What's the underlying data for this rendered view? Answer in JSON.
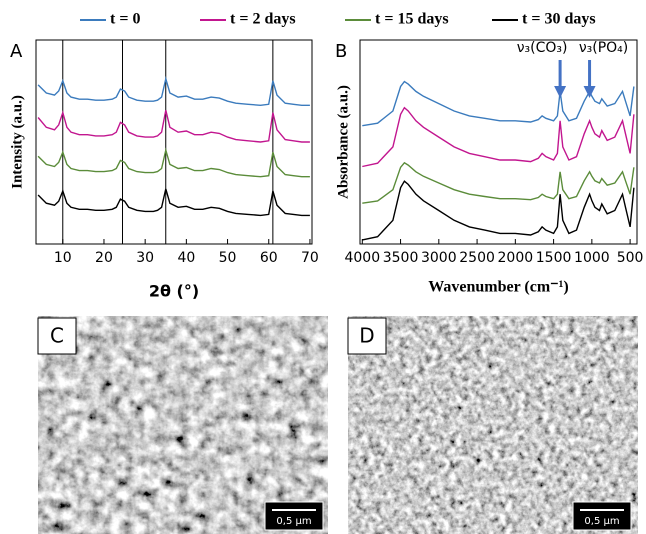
{
  "chart_data": [
    {
      "type": "line",
      "panel": "A",
      "xlabel": "2θ (°)",
      "ylabel": "Intensity (a.u.)",
      "x": [
        4,
        6,
        8,
        9,
        10,
        11,
        12,
        14,
        16,
        18,
        20,
        22,
        23,
        24,
        25,
        26,
        28,
        30,
        32,
        33,
        34,
        35,
        36,
        38,
        40,
        42,
        44,
        46,
        48,
        50,
        52,
        55,
        58,
        60,
        61,
        62,
        64,
        66,
        68,
        70
      ],
      "xlim": [
        3.5,
        70.5
      ],
      "xticks": [
        10,
        20,
        30,
        40,
        50,
        60,
        70
      ],
      "ylim": [
        0,
        100
      ],
      "ref_lines": [
        10,
        24.5,
        35,
        61
      ],
      "series": [
        {
          "name": "t = 0",
          "color": "#3b7bbd",
          "values": [
            78,
            74,
            73,
            75,
            80,
            74,
            72,
            71,
            71,
            70.5,
            70.5,
            71,
            72,
            76,
            75,
            72,
            70.5,
            70,
            70,
            70.5,
            72,
            81,
            74,
            72,
            72.5,
            71,
            71,
            72,
            71.5,
            70,
            69,
            68.5,
            68,
            68.5,
            80,
            73,
            69,
            68.5,
            68,
            68
          ]
        },
        {
          "name": "t = 2 days",
          "color": "#c2168f",
          "values": [
            62,
            57.2,
            56,
            58.4,
            64.4,
            57.2,
            54.8,
            53.6,
            53.6,
            53,
            53,
            53.6,
            54.8,
            59.6,
            58.4,
            54.8,
            53,
            52.4,
            52.4,
            53,
            54.8,
            65.6,
            57.2,
            54.8,
            55.4,
            53.6,
            53.6,
            54.8,
            54.2,
            52.4,
            51.2,
            50.6,
            50,
            50.6,
            64.4,
            56,
            51.2,
            50.6,
            50,
            50
          ]
        },
        {
          "name": "t = 15 days",
          "color": "#5b8c3a",
          "values": [
            43,
            39,
            38,
            40,
            45,
            39,
            37,
            36,
            36,
            35.5,
            35.5,
            36,
            37,
            41,
            40,
            37,
            35.5,
            35,
            35,
            35.5,
            37,
            46,
            39,
            37,
            37.5,
            36,
            36,
            37,
            36.5,
            35,
            34,
            33.5,
            33,
            33.5,
            45,
            38,
            34,
            33.5,
            33,
            33
          ]
        },
        {
          "name": "t = 30 days",
          "color": "#000000",
          "values": [
            24,
            20,
            19,
            21,
            26,
            20,
            18,
            17,
            17,
            16.5,
            16.5,
            17,
            18,
            22,
            21,
            18,
            16.5,
            16,
            16,
            16.5,
            18,
            27,
            20,
            18,
            18.5,
            17,
            17,
            18,
            17.5,
            16,
            15,
            14.5,
            14,
            14.5,
            26,
            19,
            15,
            14.5,
            14,
            14
          ]
        }
      ]
    },
    {
      "type": "line",
      "panel": "B",
      "xlabel": "Wavenumber (cm⁻¹)",
      "ylabel": "Absorbance (a.u.)",
      "x": [
        4000,
        3800,
        3600,
        3500,
        3450,
        3400,
        3300,
        3200,
        3000,
        2800,
        2600,
        2400,
        2200,
        2000,
        1800,
        1700,
        1650,
        1600,
        1500,
        1450,
        1415,
        1380,
        1300,
        1200,
        1100,
        1030,
        1000,
        960,
        900,
        870,
        800,
        700,
        600,
        560,
        500,
        450
      ],
      "xlim": [
        4030,
        410
      ],
      "xticks": [
        4000,
        3500,
        3000,
        2500,
        2000,
        1500,
        1000,
        500
      ],
      "ylim": [
        0,
        100
      ],
      "annotations": [
        {
          "text": "ν₃(CO₃)",
          "x": 1415
        },
        {
          "text": "ν₃(PO₄)",
          "x": 1030
        }
      ],
      "series": [
        {
          "color": "#3b7bbd",
          "values": [
            58,
            59.2,
            65.2,
            77.2,
            79.6,
            78.4,
            74.8,
            72.4,
            68.8,
            65.2,
            62.8,
            61.6,
            60.4,
            60.4,
            59.8,
            61,
            62.8,
            61.6,
            60.4,
            62.8,
            74.8,
            65.2,
            60.4,
            61.6,
            70,
            74.8,
            72.4,
            70,
            68.8,
            71.2,
            67.6,
            68.8,
            74.8,
            70,
            62.8,
            77.2
          ]
        },
        {
          "color": "#c2168f",
          "values": [
            38,
            39.6,
            47.6,
            63.6,
            66.8,
            65.2,
            60.4,
            57.2,
            52.4,
            47.6,
            44.4,
            42.8,
            41.2,
            41.2,
            40.4,
            42,
            44.4,
            42.8,
            41.2,
            44.4,
            60.4,
            47.6,
            41.2,
            42.8,
            54,
            60.4,
            57.2,
            54,
            52.4,
            55.6,
            50.8,
            52.4,
            60.4,
            54,
            44.4,
            63.6
          ]
        },
        {
          "color": "#5b8c3a",
          "values": [
            20,
            21.1,
            26.6,
            37.6,
            39.8,
            38.7,
            35.4,
            33.2,
            29.9,
            26.6,
            24.4,
            23.3,
            22.2,
            22.2,
            21.7,
            22.8,
            24.4,
            23.3,
            22.2,
            24.4,
            35.4,
            26.6,
            22.2,
            23.3,
            31,
            35.4,
            33.2,
            31,
            29.9,
            32.1,
            28.8,
            29.9,
            35.4,
            31,
            24.4,
            37.6
          ]
        },
        {
          "color": "#000000",
          "values": [
            2,
            3.6,
            11.6,
            27.6,
            30.8,
            29.2,
            24.4,
            21.2,
            16.4,
            11.6,
            8.4,
            6.8,
            5.2,
            5.2,
            4.4,
            6,
            8.4,
            6.8,
            5.2,
            8.4,
            24.4,
            11.6,
            5.2,
            6.8,
            18,
            24.4,
            21.2,
            18,
            16.4,
            19.6,
            14.8,
            16.4,
            24.4,
            18,
            8.4,
            27.6
          ]
        }
      ]
    }
  ],
  "images": [
    {
      "panel": "C",
      "scale_bar": "0,5 µm"
    },
    {
      "panel": "D",
      "scale_bar": "0,5 µm"
    }
  ]
}
